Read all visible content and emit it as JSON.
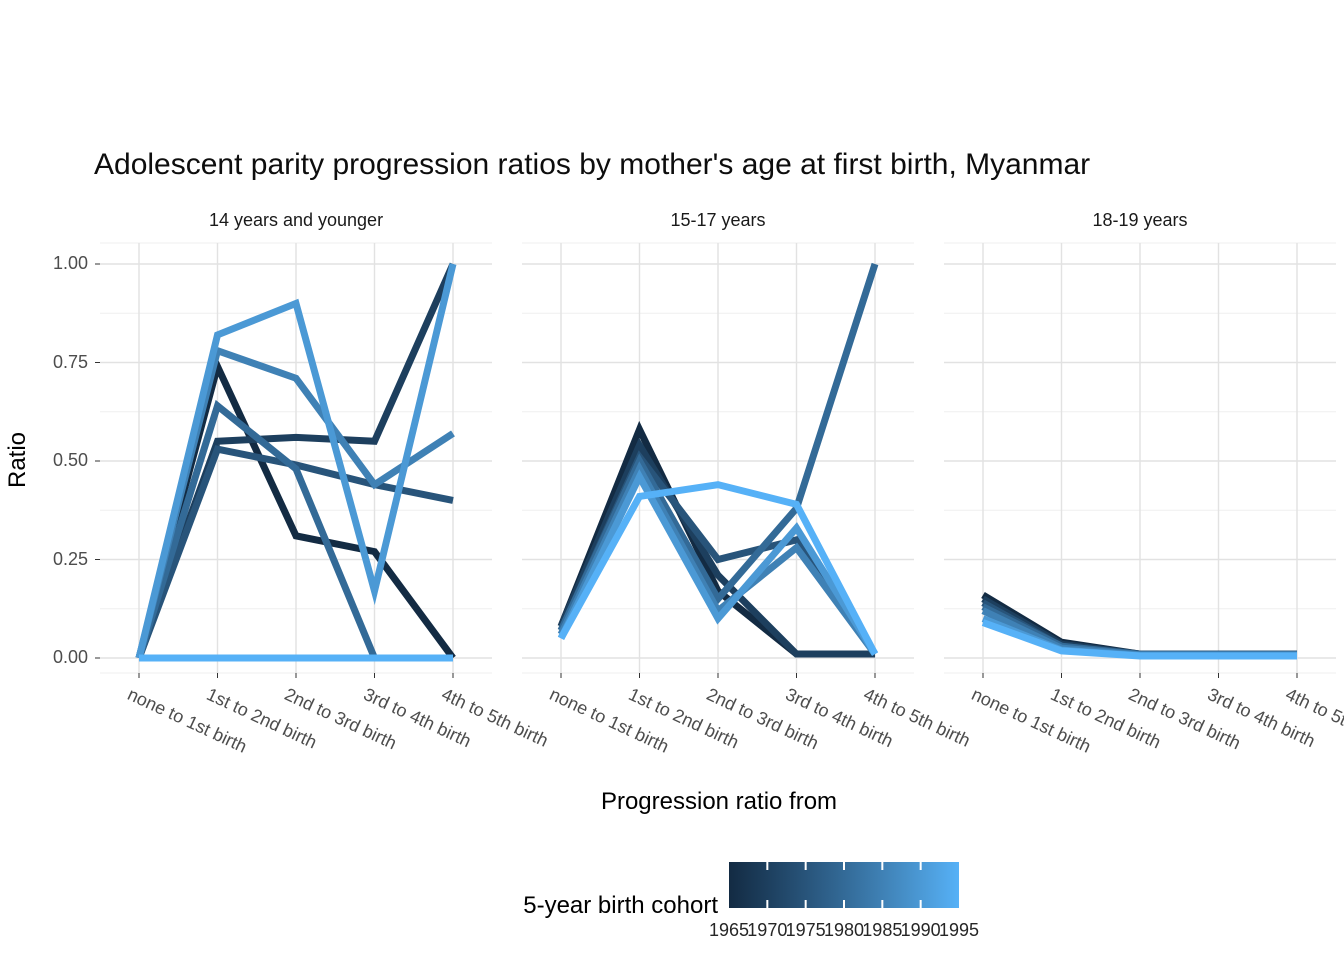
{
  "title": "Adolescent parity progression ratios by mother's age at first birth,  Myanmar",
  "chart_data": {
    "type": "line",
    "faceted": true,
    "title": "Adolescent parity progression ratios by mother's age at first birth,  Myanmar",
    "xlabel": "Progression ratio from",
    "ylabel": "Ratio",
    "ylim": [
      0,
      1
    ],
    "grid": true,
    "yticks": [
      "1.00",
      "0.75",
      "0.50",
      "0.25",
      "0.00"
    ],
    "ytick_values": [
      1.0,
      0.75,
      0.5,
      0.25,
      0.0
    ],
    "categories": [
      "none to 1st birth",
      "1st to 2nd birth",
      "2nd to 3rd birth",
      "3rd to 4th birth",
      "4th to 5th birth"
    ],
    "cohorts": [
      {
        "name": "1965",
        "color": "#132B43"
      },
      {
        "name": "1970",
        "color": "#1D3F5E"
      },
      {
        "name": "1975",
        "color": "#28547A"
      },
      {
        "name": "1980",
        "color": "#336A97"
      },
      {
        "name": "1985",
        "color": "#3F81B5"
      },
      {
        "name": "1990",
        "color": "#4B99D5"
      },
      {
        "name": "1995",
        "color": "#56B1F7"
      }
    ],
    "facets": [
      {
        "label": "14 years and younger",
        "series": [
          [
            0.0,
            0.74,
            0.31,
            0.27,
            0.0
          ],
          [
            0.0,
            0.55,
            0.56,
            0.55,
            1.0
          ],
          [
            0.0,
            0.53,
            0.49,
            0.44,
            0.4
          ],
          [
            0.0,
            0.64,
            0.48,
            0.0,
            0.0
          ],
          [
            0.0,
            0.78,
            0.71,
            0.44,
            0.57
          ],
          [
            0.0,
            0.82,
            0.9,
            0.17,
            1.0
          ],
          [
            0.0,
            0.0,
            0.0,
            0.0,
            0.0
          ]
        ]
      },
      {
        "label": "15-17 years",
        "series": [
          [
            0.08,
            0.58,
            0.17,
            0.01,
            0.01
          ],
          [
            0.08,
            0.54,
            0.21,
            0.01,
            0.01
          ],
          [
            0.07,
            0.51,
            0.25,
            0.3,
            0.01
          ],
          [
            0.07,
            0.5,
            0.15,
            0.38,
            1.0
          ],
          [
            0.06,
            0.48,
            0.12,
            0.28,
            0.01
          ],
          [
            0.05,
            0.46,
            0.1,
            0.33,
            0.01
          ],
          [
            0.05,
            0.41,
            0.44,
            0.39,
            0.01
          ]
        ]
      },
      {
        "label": "18-19 years",
        "series": [
          [
            0.16,
            0.04,
            0.01,
            0.01,
            0.01
          ],
          [
            0.15,
            0.035,
            0.01,
            0.01,
            0.01
          ],
          [
            0.14,
            0.03,
            0.01,
            0.01,
            0.01
          ],
          [
            0.13,
            0.03,
            0.009,
            0.009,
            0.009
          ],
          [
            0.12,
            0.025,
            0.008,
            0.008,
            0.008
          ],
          [
            0.1,
            0.02,
            0.006,
            0.006,
            0.006
          ],
          [
            0.09,
            0.018,
            0.005,
            0.005,
            0.005
          ]
        ]
      }
    ],
    "legend": {
      "title": "5-year birth cohort",
      "ticks": [
        "1965",
        "1970",
        "1975",
        "1980",
        "1985",
        "1990",
        "1995"
      ],
      "gradient_start": "#132B43",
      "gradient_end": "#56B1F7"
    }
  }
}
